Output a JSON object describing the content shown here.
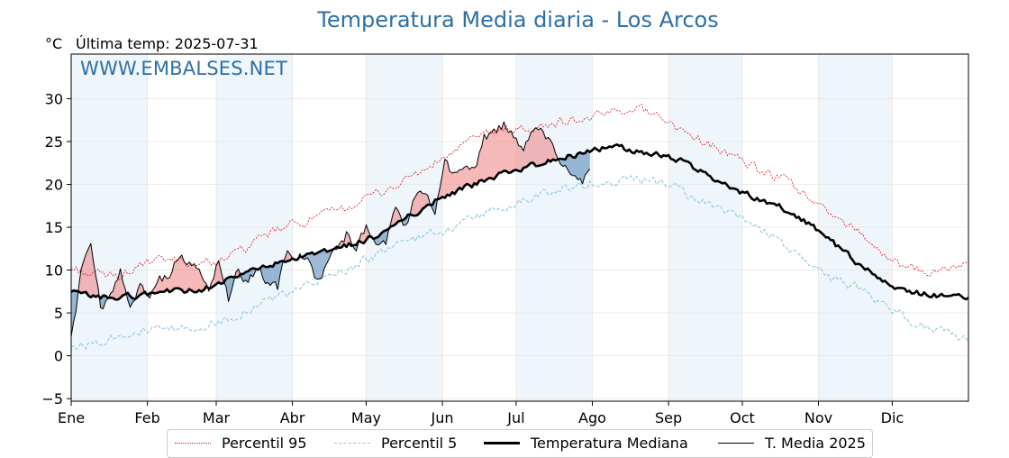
{
  "title": "Temperatura Media diaria - Los Arcos",
  "unit": "°C",
  "last_temp": "Última temp: 2025-07-31",
  "watermark": "WWW.EMBALSES.NET",
  "colors": {
    "title": "#2e6fa7",
    "p95": "#e8121b",
    "p5": "#8fc8dc",
    "median": "#000000",
    "year": "#000000",
    "above_fill": "#f07e80",
    "below_fill": "#4a7fb4",
    "band": "#eef5fb"
  },
  "legend": [
    {
      "label": "Percentil 95",
      "style": "red-dotted"
    },
    {
      "label": "Percentil 5",
      "style": "lightblue-dashed"
    },
    {
      "label": "Temperatura Mediana",
      "style": "black-thick"
    },
    {
      "label": "T. Media 2025",
      "style": "black-thin"
    }
  ],
  "chart_data": {
    "type": "line",
    "title": "Temperatura Media diaria - Los Arcos",
    "ylabel": "°C",
    "ylim": [
      -5.3,
      35.2
    ],
    "xlim": [
      1,
      366
    ],
    "grid": true,
    "legend_position": "bottom",
    "x_unit": "day of year",
    "yticks": [
      -5,
      0,
      5,
      10,
      15,
      20,
      25,
      30
    ],
    "ytick_labels": [
      "−5",
      "0",
      "5",
      "10",
      "15",
      "20",
      "25",
      "30"
    ],
    "months": [
      "Ene",
      "Feb",
      "Mar",
      "Abr",
      "May",
      "Jun",
      "Jul",
      "Ago",
      "Sep",
      "Oct",
      "Nov",
      "Dic"
    ],
    "month_start_days": [
      1,
      32,
      60,
      91,
      121,
      152,
      182,
      213,
      244,
      274,
      305,
      335
    ],
    "shaded_months": [
      "Ene",
      "Mar",
      "May",
      "Jul",
      "Sep",
      "Nov"
    ],
    "series": [
      {
        "name": "Percentil 95",
        "x": [
          1,
          10,
          20,
          30,
          40,
          50,
          60,
          70,
          80,
          90,
          100,
          110,
          120,
          130,
          140,
          150,
          160,
          170,
          180,
          190,
          200,
          210,
          220,
          230,
          240,
          250,
          260,
          270,
          280,
          290,
          300,
          310,
          320,
          330,
          340,
          350,
          360,
          366
        ],
        "y": [
          10.2,
          9.5,
          9.3,
          10.6,
          11.2,
          10.8,
          11.0,
          12.2,
          14.0,
          15.2,
          16.0,
          17.0,
          18.2,
          19.4,
          21.0,
          22.5,
          24.5,
          26.0,
          26.5,
          26.4,
          27.3,
          27.6,
          28.4,
          29.0,
          28.2,
          26.1,
          24.8,
          23.2,
          21.7,
          20.6,
          18.8,
          16.2,
          15.0,
          12.2,
          10.1,
          9.8,
          10.2,
          10.8
        ]
      },
      {
        "name": "Percentil 5",
        "x": [
          1,
          10,
          20,
          30,
          40,
          50,
          60,
          70,
          80,
          90,
          100,
          110,
          120,
          130,
          140,
          150,
          160,
          170,
          180,
          190,
          200,
          210,
          220,
          230,
          240,
          250,
          260,
          270,
          280,
          290,
          300,
          310,
          320,
          330,
          340,
          350,
          360,
          366
        ],
        "y": [
          1.0,
          1.5,
          2.5,
          3.0,
          3.0,
          3.2,
          3.8,
          5.0,
          6.5,
          7.3,
          8.4,
          9.8,
          11.2,
          12.3,
          13.5,
          14.5,
          15.5,
          16.7,
          17.6,
          18.5,
          19.5,
          20.2,
          20.1,
          20.7,
          20.2,
          19.0,
          17.7,
          16.3,
          14.9,
          13.3,
          11.0,
          9.0,
          8.0,
          6.4,
          4.5,
          3.0,
          2.6,
          2.0
        ]
      },
      {
        "name": "Temperatura Mediana",
        "x": [
          1,
          10,
          20,
          30,
          40,
          50,
          60,
          70,
          80,
          90,
          100,
          110,
          120,
          130,
          140,
          150,
          160,
          170,
          180,
          190,
          200,
          210,
          220,
          230,
          240,
          250,
          260,
          270,
          280,
          290,
          300,
          310,
          320,
          330,
          340,
          350,
          360,
          366
        ],
        "y": [
          7.4,
          6.9,
          6.8,
          7.1,
          7.6,
          7.5,
          8.3,
          9.4,
          10.5,
          11.0,
          11.8,
          12.6,
          13.4,
          14.6,
          16.5,
          18.3,
          19.5,
          20.5,
          21.5,
          22.3,
          23.1,
          23.8,
          24.4,
          24.0,
          23.5,
          22.6,
          21.1,
          19.5,
          18.4,
          17.3,
          15.6,
          13.4,
          11.0,
          9.0,
          7.5,
          7.2,
          6.8,
          6.9
        ]
      },
      {
        "name": "T. Media 2025",
        "x": [
          1,
          5,
          9,
          13,
          17,
          21,
          25,
          29,
          33,
          37,
          41,
          45,
          49,
          53,
          57,
          61,
          65,
          69,
          73,
          77,
          81,
          85,
          89,
          93,
          97,
          101,
          105,
          109,
          113,
          117,
          121,
          125,
          129,
          133,
          137,
          141,
          145,
          149,
          153,
          157,
          161,
          165,
          169,
          173,
          177,
          181,
          185,
          189,
          193,
          197,
          201,
          205,
          209,
          212
        ],
        "y": [
          2.0,
          9.5,
          12.5,
          5.8,
          7.0,
          10.0,
          5.6,
          8.5,
          6.5,
          8.6,
          9.2,
          11.8,
          10.6,
          10.0,
          7.6,
          11.2,
          6.5,
          10.0,
          8.5,
          10.5,
          8.3,
          8.0,
          12.3,
          11.8,
          11.4,
          9.0,
          10.6,
          12.5,
          14.2,
          13.0,
          15.0,
          13.5,
          13.2,
          17.0,
          15.2,
          18.6,
          19.5,
          17.2,
          22.5,
          21.0,
          22.5,
          21.5,
          25.3,
          26.3,
          27.0,
          25.5,
          24.2,
          26.4,
          26.0,
          24.5,
          22.5,
          21.0,
          20.4,
          21.3
        ]
      }
    ]
  }
}
